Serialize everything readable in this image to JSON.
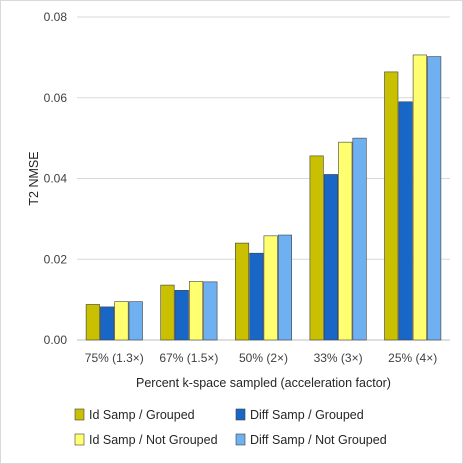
{
  "chart_data": {
    "type": "bar",
    "title": "",
    "xlabel": "Percent k-space sampled (acceleration factor)",
    "ylabel": "T2 NMSE",
    "ylim": [
      0,
      0.08
    ],
    "yticks": [
      "0.00",
      "0.02",
      "0.04",
      "0.06",
      "0.08"
    ],
    "grid": "horizontal",
    "legend_position": "bottom",
    "categories": [
      "75% (1.3×)",
      "67% (1.5×)",
      "50% (2×)",
      "33% (3×)",
      "25% (4×)"
    ],
    "series": [
      {
        "name": "Id Samp / Grouped",
        "color": "#c8c000",
        "values": [
          0.0088,
          0.0136,
          0.024,
          0.0456,
          0.0664
        ]
      },
      {
        "name": "Diff Samp / Grouped",
        "color": "#1866c6",
        "values": [
          0.0082,
          0.0123,
          0.0215,
          0.041,
          0.059
        ]
      },
      {
        "name": "Id Samp / Not Grouped",
        "color": "#ffff70",
        "values": [
          0.0095,
          0.0145,
          0.0258,
          0.049,
          0.0706
        ]
      },
      {
        "name": "Diff Samp / Not Grouped",
        "color": "#6fb0f0",
        "values": [
          0.0095,
          0.0144,
          0.026,
          0.05,
          0.0702
        ]
      }
    ]
  }
}
